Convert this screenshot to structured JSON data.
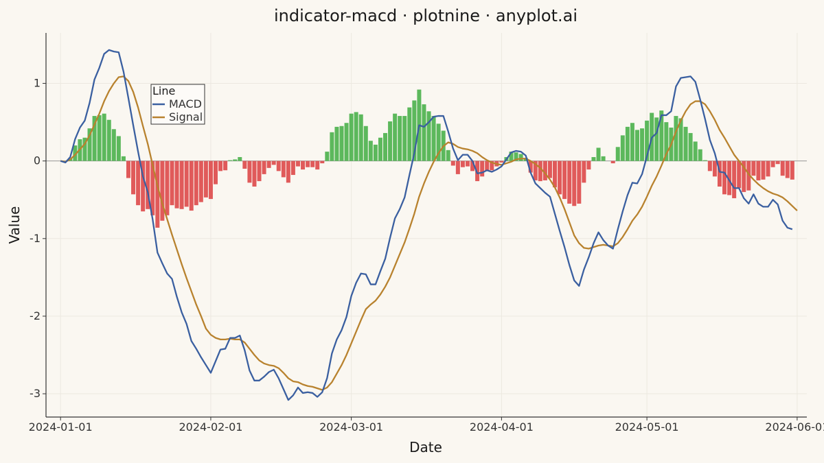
{
  "chart_data": {
    "type": "line",
    "title": "indicator-macd · plotnine · anyplot.ai",
    "xlabel": "Date",
    "ylabel": "Value",
    "x_range": [
      "2023-12-29",
      "2024-06-03"
    ],
    "ylim": [
      -3.3,
      1.65
    ],
    "x_ticks": [
      "2024-01-01",
      "2024-02-01",
      "2024-03-01",
      "2024-04-01",
      "2024-05-01",
      "2024-06-01"
    ],
    "y_ticks": [
      1,
      0,
      -1,
      -2,
      -3
    ],
    "y_tick_labels": [
      "1",
      "0",
      "-1",
      "-2",
      "-3"
    ],
    "grid": true,
    "zero_line": true,
    "legend": {
      "title": "Line",
      "position": "top-left"
    },
    "colors": {
      "macd": "#3A5FA0",
      "signal": "#B8822E",
      "hist_pos": "#5CB85C",
      "hist_neg": "#E05A5A",
      "axis": "#333333",
      "zero": "#999999",
      "grid": "#ECE8E0"
    },
    "start_date": "2024-01-01",
    "series": [
      {
        "name": "MACD",
        "values": [
          0.0,
          -0.02,
          0.05,
          0.28,
          0.43,
          0.52,
          0.75,
          1.05,
          1.2,
          1.38,
          1.43,
          1.41,
          1.4,
          1.15,
          0.81,
          0.46,
          0.12,
          -0.2,
          -0.4,
          -0.75,
          -1.18,
          -1.32,
          -1.45,
          -1.52,
          -1.75,
          -1.95,
          -2.1,
          -2.32,
          -2.42,
          -2.53,
          -2.63,
          -2.73,
          -2.58,
          -2.43,
          -2.42,
          -2.28,
          -2.28,
          -2.25,
          -2.44,
          -2.7,
          -2.83,
          -2.83,
          -2.78,
          -2.72,
          -2.69,
          -2.8,
          -2.94,
          -3.08,
          -3.02,
          -2.92,
          -2.99,
          -2.98,
          -2.99,
          -3.04,
          -2.98,
          -2.8,
          -2.48,
          -2.3,
          -2.18,
          -2.01,
          -1.74,
          -1.57,
          -1.45,
          -1.46,
          -1.59,
          -1.59,
          -1.42,
          -1.26,
          -0.99,
          -0.74,
          -0.62,
          -0.47,
          -0.18,
          0.1,
          0.46,
          0.44,
          0.5,
          0.57,
          0.58,
          0.58,
          0.38,
          0.16,
          0.01,
          0.08,
          0.08,
          0.0,
          -0.16,
          -0.15,
          -0.12,
          -0.14,
          -0.11,
          -0.07,
          0.02,
          0.11,
          0.13,
          0.12,
          0.07,
          -0.15,
          -0.29,
          -0.35,
          -0.41,
          -0.46,
          -0.68,
          -0.9,
          -1.11,
          -1.34,
          -1.54,
          -1.61,
          -1.4,
          -1.24,
          -1.06,
          -0.92,
          -1.02,
          -1.09,
          -1.13,
          -0.88,
          -0.65,
          -0.44,
          -0.28,
          -0.29,
          -0.17,
          0.06,
          0.3,
          0.36,
          0.59,
          0.59,
          0.64,
          0.96,
          1.07,
          1.08,
          1.09,
          1.02,
          0.79,
          0.54,
          0.27,
          0.1,
          -0.14,
          -0.15,
          -0.25,
          -0.35,
          -0.35,
          -0.48,
          -0.55,
          -0.43,
          -0.55,
          -0.59,
          -0.59,
          -0.5,
          -0.56,
          -0.77,
          -0.86,
          -0.88
        ]
      },
      {
        "name": "Signal",
        "values": [
          0.0,
          -0.01,
          0.02,
          0.08,
          0.15,
          0.22,
          0.33,
          0.47,
          0.61,
          0.77,
          0.9,
          1.0,
          1.08,
          1.09,
          1.03,
          0.89,
          0.69,
          0.45,
          0.22,
          -0.05,
          -0.32,
          -0.55,
          -0.75,
          -0.95,
          -1.14,
          -1.33,
          -1.51,
          -1.68,
          -1.85,
          -2.0,
          -2.16,
          -2.24,
          -2.28,
          -2.3,
          -2.3,
          -2.29,
          -2.3,
          -2.3,
          -2.34,
          -2.42,
          -2.5,
          -2.57,
          -2.61,
          -2.63,
          -2.64,
          -2.67,
          -2.73,
          -2.8,
          -2.84,
          -2.85,
          -2.88,
          -2.9,
          -2.91,
          -2.93,
          -2.95,
          -2.92,
          -2.85,
          -2.74,
          -2.63,
          -2.5,
          -2.35,
          -2.2,
          -2.05,
          -1.91,
          -1.85,
          -1.8,
          -1.72,
          -1.62,
          -1.5,
          -1.35,
          -1.2,
          -1.05,
          -0.87,
          -0.68,
          -0.46,
          -0.29,
          -0.14,
          -0.01,
          0.1,
          0.19,
          0.24,
          0.22,
          0.18,
          0.16,
          0.15,
          0.13,
          0.1,
          0.05,
          0.01,
          -0.02,
          -0.04,
          -0.05,
          -0.03,
          -0.01,
          0.02,
          0.03,
          0.03,
          0.0,
          -0.04,
          -0.09,
          -0.16,
          -0.24,
          -0.34,
          -0.47,
          -0.62,
          -0.79,
          -0.96,
          -1.06,
          -1.12,
          -1.13,
          -1.11,
          -1.09,
          -1.08,
          -1.09,
          -1.1,
          -1.06,
          -0.98,
          -0.88,
          -0.77,
          -0.69,
          -0.59,
          -0.46,
          -0.32,
          -0.2,
          -0.06,
          0.09,
          0.21,
          0.38,
          0.52,
          0.64,
          0.73,
          0.77,
          0.77,
          0.73,
          0.64,
          0.53,
          0.4,
          0.3,
          0.19,
          0.08,
          0.0,
          -0.08,
          -0.17,
          -0.24,
          -0.3,
          -0.35,
          -0.39,
          -0.42,
          -0.44,
          -0.47,
          -0.52,
          -0.58,
          -0.64
        ]
      },
      {
        "name": "Histogram",
        "values": [
          0.0,
          -0.01,
          0.03,
          0.2,
          0.28,
          0.3,
          0.42,
          0.58,
          0.59,
          0.61,
          0.53,
          0.41,
          0.32,
          0.06,
          -0.22,
          -0.43,
          -0.57,
          -0.65,
          -0.62,
          -0.7,
          -0.86,
          -0.77,
          -0.7,
          -0.57,
          -0.61,
          -0.62,
          -0.59,
          -0.64,
          -0.57,
          -0.53,
          -0.47,
          -0.49,
          -0.3,
          -0.13,
          -0.12,
          0.01,
          0.02,
          0.05,
          -0.1,
          -0.28,
          -0.33,
          -0.26,
          -0.17,
          -0.09,
          -0.05,
          -0.13,
          -0.21,
          -0.28,
          -0.18,
          -0.07,
          -0.11,
          -0.08,
          -0.08,
          -0.11,
          -0.03,
          0.12,
          0.37,
          0.44,
          0.45,
          0.49,
          0.61,
          0.63,
          0.6,
          0.45,
          0.26,
          0.21,
          0.3,
          0.36,
          0.51,
          0.61,
          0.58,
          0.58,
          0.69,
          0.78,
          0.92,
          0.73,
          0.64,
          0.58,
          0.48,
          0.39,
          0.14,
          -0.06,
          -0.17,
          -0.08,
          -0.07,
          -0.13,
          -0.26,
          -0.2,
          -0.13,
          -0.12,
          -0.07,
          -0.02,
          0.05,
          0.12,
          0.11,
          0.09,
          0.04,
          -0.15,
          -0.25,
          -0.26,
          -0.25,
          -0.22,
          -0.34,
          -0.43,
          -0.49,
          -0.55,
          -0.58,
          -0.55,
          -0.28,
          -0.11,
          0.05,
          0.17,
          0.06,
          0.0,
          -0.03,
          0.18,
          0.33,
          0.44,
          0.49,
          0.4,
          0.42,
          0.52,
          0.62,
          0.56,
          0.65,
          0.5,
          0.43,
          0.58,
          0.55,
          0.44,
          0.36,
          0.25,
          0.15,
          0.01,
          -0.13,
          -0.2,
          -0.33,
          -0.43,
          -0.44,
          -0.48,
          -0.35,
          -0.4,
          -0.38,
          -0.19,
          -0.25,
          -0.24,
          -0.2,
          -0.08,
          -0.04,
          -0.19,
          -0.22,
          -0.24
        ]
      }
    ]
  }
}
